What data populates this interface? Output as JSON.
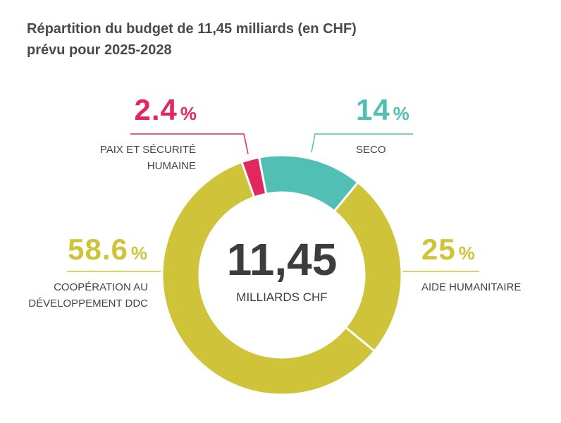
{
  "chart_data": {
    "type": "donut",
    "title": "Répartition du budget de 11,45 milliards (en CHF)",
    "subtitle": "prévu pour 2025-2028",
    "categories": [
      "SECO",
      "AIDE HUMANITAIRE",
      "COOPÉRATION AU DÉVELOPPEMENT DDC",
      "PAIX ET SÉCURITÉ HUMAINE"
    ],
    "values": [
      14,
      25,
      58.6,
      2.4
    ],
    "unit": "%",
    "colors": [
      "#52bfb5",
      "#cfc439",
      "#cfc439",
      "#e2265f"
    ],
    "center_value": "11,45",
    "center_label": "MILLIARDS CHF"
  }
}
